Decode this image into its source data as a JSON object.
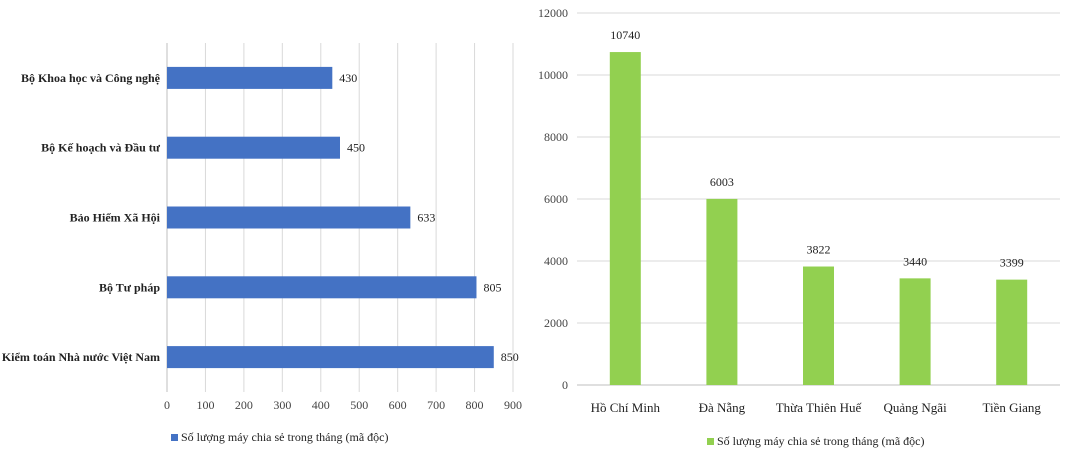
{
  "chart_data": [
    {
      "type": "bar",
      "orientation": "horizontal",
      "categories": [
        "Bộ Khoa học và Công nghệ",
        "Bộ Kế hoạch và Đầu tư",
        "Bảo Hiểm Xã Hội",
        "Bộ Tư pháp",
        "Kiểm toán Nhà nước Việt Nam"
      ],
      "series": [
        {
          "name": "Số lượng máy chia sẻ trong tháng (mã độc)",
          "values": [
            430,
            450,
            633,
            805,
            850
          ],
          "color": "#4472C4"
        }
      ],
      "xlim": [
        0,
        900
      ],
      "xticks": [
        0,
        100,
        200,
        300,
        400,
        500,
        600,
        700,
        800,
        900
      ],
      "grid": true,
      "legend_position": "bottom"
    },
    {
      "type": "bar",
      "orientation": "vertical",
      "categories": [
        "Hồ Chí Minh",
        "Đà Nẵng",
        "Thừa Thiên Huế",
        "Quảng Ngãi",
        "Tiền Giang"
      ],
      "series": [
        {
          "name": "Số lượng máy chia sẻ trong tháng (mã độc)",
          "values": [
            10740,
            6003,
            3822,
            3440,
            3399
          ],
          "color": "#92D050"
        }
      ],
      "ylim": [
        0,
        12000
      ],
      "yticks": [
        0,
        2000,
        4000,
        6000,
        8000,
        10000,
        12000
      ],
      "grid": true,
      "legend_position": "bottom"
    }
  ]
}
